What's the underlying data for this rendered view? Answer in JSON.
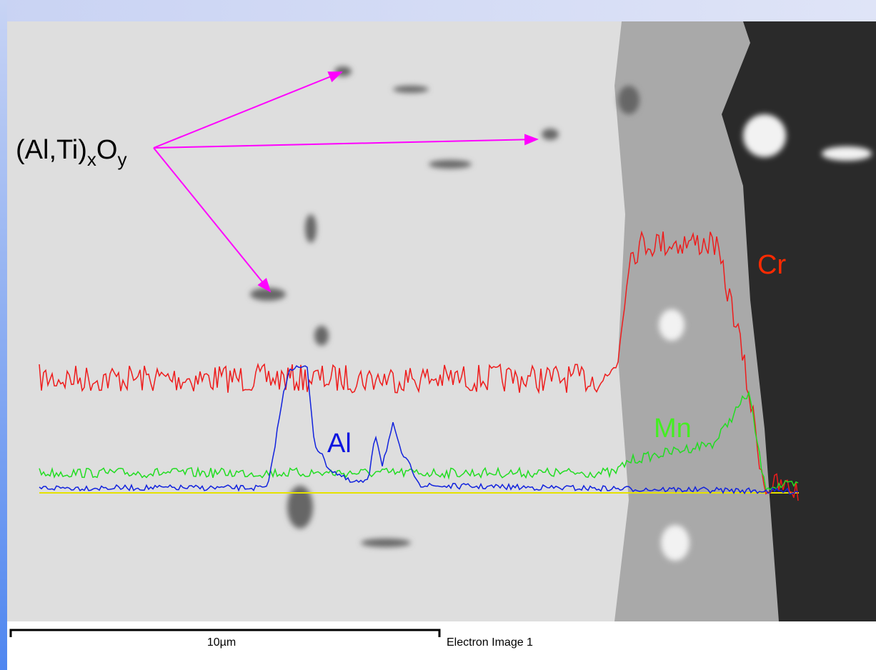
{
  "annotation": {
    "parts": [
      "(Al,Ti)",
      "x",
      "O",
      "y"
    ]
  },
  "profile_labels": {
    "cr": "Cr",
    "mn": "Mn",
    "al": "Al"
  },
  "scale_bar": {
    "label": "10µm"
  },
  "image_caption": "Electron Image 1"
}
